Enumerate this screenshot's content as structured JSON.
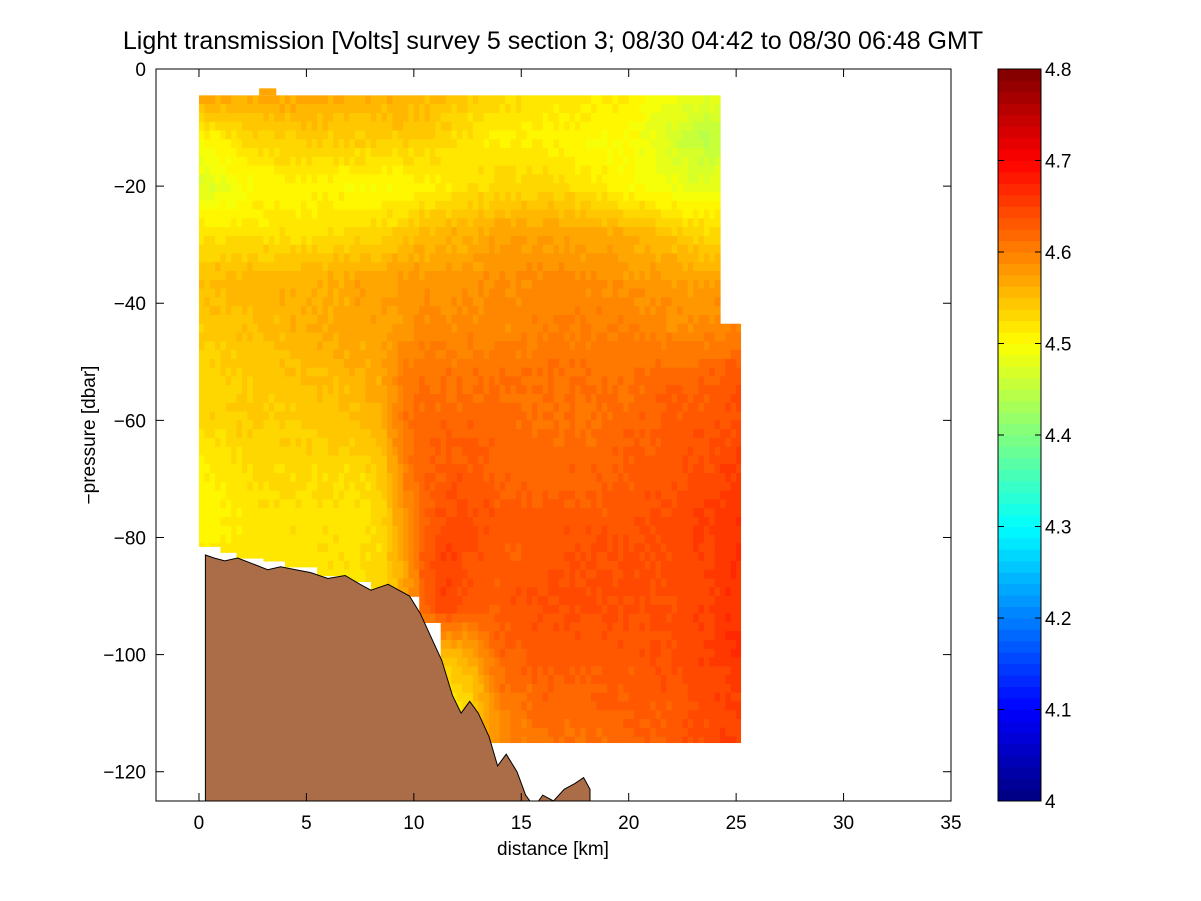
{
  "chart_data": {
    "type": "heatmap",
    "title": "Light transmission [Volts] survey 5 section 3; 08/30 04:42 to 08/30 06:48 GMT",
    "xlabel": "distance [km]",
    "ylabel": "−pressure [dbar]",
    "xlim": [
      -2,
      35
    ],
    "ylim": [
      -125,
      0
    ],
    "x_ticks": [
      0,
      5,
      10,
      15,
      20,
      25,
      30,
      35
    ],
    "x_tick_labels": [
      "0",
      "5",
      "10",
      "15",
      "20",
      "25",
      "30",
      "35"
    ],
    "y_ticks": [
      0,
      -20,
      -40,
      -60,
      -80,
      -100,
      -120
    ],
    "y_tick_labels": [
      "0",
      "−20",
      "−40",
      "−60",
      "−80",
      "−100",
      "−120"
    ],
    "colorbar": {
      "colormap": "jet",
      "clim": [
        4.0,
        4.8
      ],
      "ticks": [
        4.0,
        4.1,
        4.2,
        4.3,
        4.4,
        4.5,
        4.6,
        4.7,
        4.8
      ],
      "tick_labels": [
        "4",
        "4.1",
        "4.2",
        "4.3",
        "4.4",
        "4.5",
        "4.6",
        "4.7",
        "4.8"
      ]
    },
    "grid": false,
    "field": {
      "x": [
        0,
        2.5,
        5,
        7.5,
        8.5,
        9.5,
        10.5,
        11.5,
        12.5,
        14,
        16,
        18,
        20,
        22,
        23.5,
        25
      ],
      "y": [
        -4.5,
        -12,
        -20,
        -28,
        -36,
        -44,
        -52,
        -60,
        -68,
        -76,
        -84,
        -92,
        -100,
        -108,
        -115
      ],
      "values": [
        [
          4.57,
          4.57,
          4.57,
          4.56,
          4.56,
          4.56,
          4.55,
          4.55,
          4.54,
          4.53,
          4.52,
          4.52,
          4.51,
          4.49,
          4.48,
          null
        ],
        [
          4.5,
          4.53,
          4.54,
          4.54,
          4.54,
          4.54,
          4.54,
          4.53,
          4.52,
          4.51,
          4.51,
          4.5,
          4.5,
          4.47,
          4.45,
          null
        ],
        [
          4.47,
          4.5,
          4.51,
          4.5,
          4.5,
          4.5,
          4.51,
          4.51,
          4.52,
          4.53,
          4.53,
          4.52,
          4.5,
          4.49,
          4.48,
          null
        ],
        [
          4.52,
          4.52,
          4.52,
          4.53,
          4.53,
          4.54,
          4.55,
          4.56,
          4.56,
          4.57,
          4.57,
          4.57,
          4.56,
          4.54,
          4.53,
          null
        ],
        [
          4.55,
          4.56,
          4.56,
          4.57,
          4.57,
          4.58,
          4.58,
          4.58,
          4.58,
          4.59,
          4.59,
          4.59,
          4.58,
          4.58,
          4.57,
          null
        ],
        [
          4.54,
          4.55,
          4.56,
          4.57,
          4.57,
          4.58,
          4.59,
          4.59,
          4.59,
          4.59,
          4.6,
          4.6,
          4.6,
          4.59,
          4.59,
          4.6
        ],
        [
          4.53,
          4.54,
          4.55,
          4.56,
          4.57,
          4.6,
          4.61,
          4.61,
          4.61,
          4.61,
          4.61,
          4.61,
          4.61,
          4.62,
          4.62,
          4.63
        ],
        [
          4.53,
          4.54,
          4.54,
          4.55,
          4.56,
          4.61,
          4.62,
          4.62,
          4.62,
          4.62,
          4.61,
          4.61,
          4.62,
          4.63,
          4.63,
          4.64
        ],
        [
          4.51,
          4.53,
          4.53,
          4.53,
          4.54,
          4.6,
          4.62,
          4.63,
          4.63,
          4.62,
          4.62,
          4.62,
          4.63,
          4.63,
          4.64,
          4.65
        ],
        [
          4.5,
          4.52,
          4.52,
          4.52,
          4.53,
          4.58,
          4.62,
          4.64,
          4.64,
          4.63,
          4.63,
          4.63,
          4.63,
          4.64,
          4.65,
          4.66
        ],
        [
          4.51,
          4.52,
          4.52,
          4.52,
          4.53,
          4.57,
          4.63,
          4.65,
          4.64,
          4.63,
          4.63,
          4.64,
          4.64,
          4.64,
          4.65,
          4.66
        ],
        [
          null,
          null,
          4.52,
          4.52,
          4.53,
          4.56,
          4.62,
          4.65,
          4.63,
          4.63,
          4.64,
          4.64,
          4.64,
          4.64,
          4.65,
          4.66
        ],
        [
          null,
          null,
          null,
          null,
          null,
          null,
          4.57,
          4.55,
          4.56,
          4.62,
          4.63,
          4.63,
          4.63,
          4.64,
          4.65,
          4.66
        ],
        [
          null,
          null,
          null,
          null,
          null,
          null,
          null,
          4.51,
          4.53,
          4.6,
          4.62,
          4.62,
          4.63,
          4.63,
          4.64,
          4.65
        ],
        [
          null,
          null,
          null,
          null,
          null,
          null,
          null,
          null,
          4.54,
          4.59,
          4.61,
          4.61,
          4.62,
          4.63,
          4.64,
          4.65
        ]
      ]
    },
    "bottom_profile": {
      "x": [
        0.3,
        0.7,
        1.2,
        1.8,
        2.5,
        3.2,
        3.8,
        4.5,
        5.2,
        6.0,
        6.8,
        7.5,
        8.0,
        8.8,
        9.3,
        9.8,
        10.3,
        10.8,
        11.3,
        11.8,
        12.2,
        12.6,
        13.0,
        13.5,
        13.9,
        14.3,
        14.8,
        15.2,
        15.6,
        16.0,
        16.5,
        17.0,
        17.5,
        17.9,
        18.2
      ],
      "y": [
        -83,
        -83.5,
        -84,
        -83.5,
        -84.5,
        -85.5,
        -85,
        -85.5,
        -86,
        -87,
        -86.5,
        -88,
        -89,
        -88,
        -89,
        -90,
        -93,
        -97,
        -101,
        -107,
        -110,
        -108,
        -110,
        -114,
        -119,
        -117,
        -120,
        -124,
        -126,
        -124,
        -125,
        -123,
        -122,
        -121,
        -123
      ],
      "color": "#ab6d48"
    },
    "data_extent": {
      "top": -4.5,
      "segments": [
        {
          "x": [
            0.0,
            11.3
          ],
          "bottom": -81
        },
        {
          "x": [
            0.0,
            1.0
          ],
          "bottom": -81.5
        },
        {
          "x": [
            1.0,
            1.8
          ],
          "bottom": -82.5
        },
        {
          "x": [
            1.8,
            3.0
          ],
          "bottom": -83.5
        },
        {
          "x": [
            3.0,
            4.0
          ],
          "bottom": -84
        },
        {
          "x": [
            4.0,
            5.4
          ],
          "bottom": -85
        },
        {
          "x": [
            5.4,
            6.6
          ],
          "bottom": -86.5
        },
        {
          "x": [
            6.6,
            8.0
          ],
          "bottom": -87.5
        },
        {
          "x": [
            8.0,
            9.2
          ],
          "bottom": -89
        },
        {
          "x": [
            9.2,
            10.2
          ],
          "bottom": -90
        },
        {
          "x": [
            10.2,
            11.3
          ],
          "bottom": -94.5
        },
        {
          "x": [
            11.3,
            13.0
          ],
          "bottom": -111
        },
        {
          "x": [
            13.0,
            25.2
          ],
          "bottom": -115
        }
      ],
      "right_upper_x": 24.3,
      "right_lower_x": 25.2,
      "right_step_y": -43.5,
      "top_bump": {
        "x": [
          2.8,
          3.6
        ],
        "y": -3.3
      }
    }
  }
}
